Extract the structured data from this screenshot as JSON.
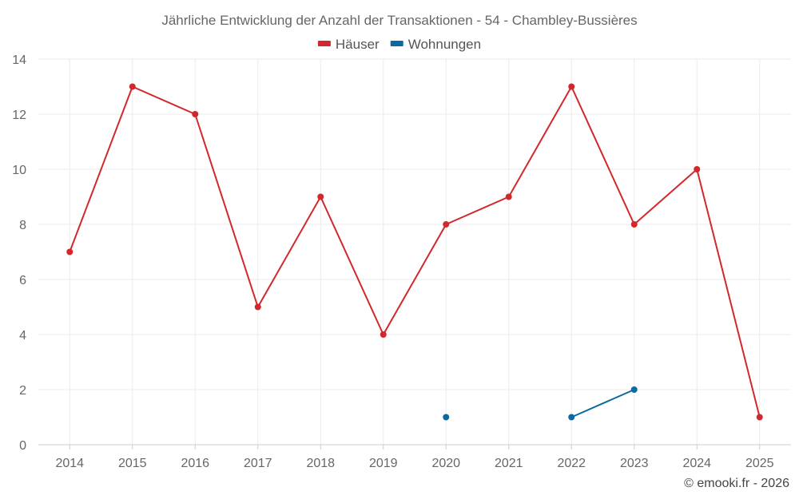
{
  "chart_data": {
    "type": "line",
    "title": "Jährliche Entwicklung der Anzahl der Transaktionen - 54 - Chambley-Bussières",
    "categories": [
      "2014",
      "2015",
      "2016",
      "2017",
      "2018",
      "2019",
      "2020",
      "2021",
      "2022",
      "2023",
      "2024",
      "2025"
    ],
    "ylim": [
      0,
      14
    ],
    "yticks": [
      0,
      2,
      4,
      6,
      8,
      10,
      12,
      14
    ],
    "grid": true,
    "legend_position": "top-center",
    "series": [
      {
        "name": "Häuser",
        "color": "#d3282b",
        "values": [
          7,
          13,
          12,
          5,
          9,
          4,
          8,
          9,
          13,
          8,
          10,
          1
        ]
      },
      {
        "name": "Wohnungen",
        "color": "#0b6aa2",
        "values": [
          null,
          null,
          null,
          null,
          null,
          null,
          1,
          null,
          1,
          2,
          null,
          null
        ]
      }
    ]
  },
  "credit": "© emooki.fr - 2026"
}
